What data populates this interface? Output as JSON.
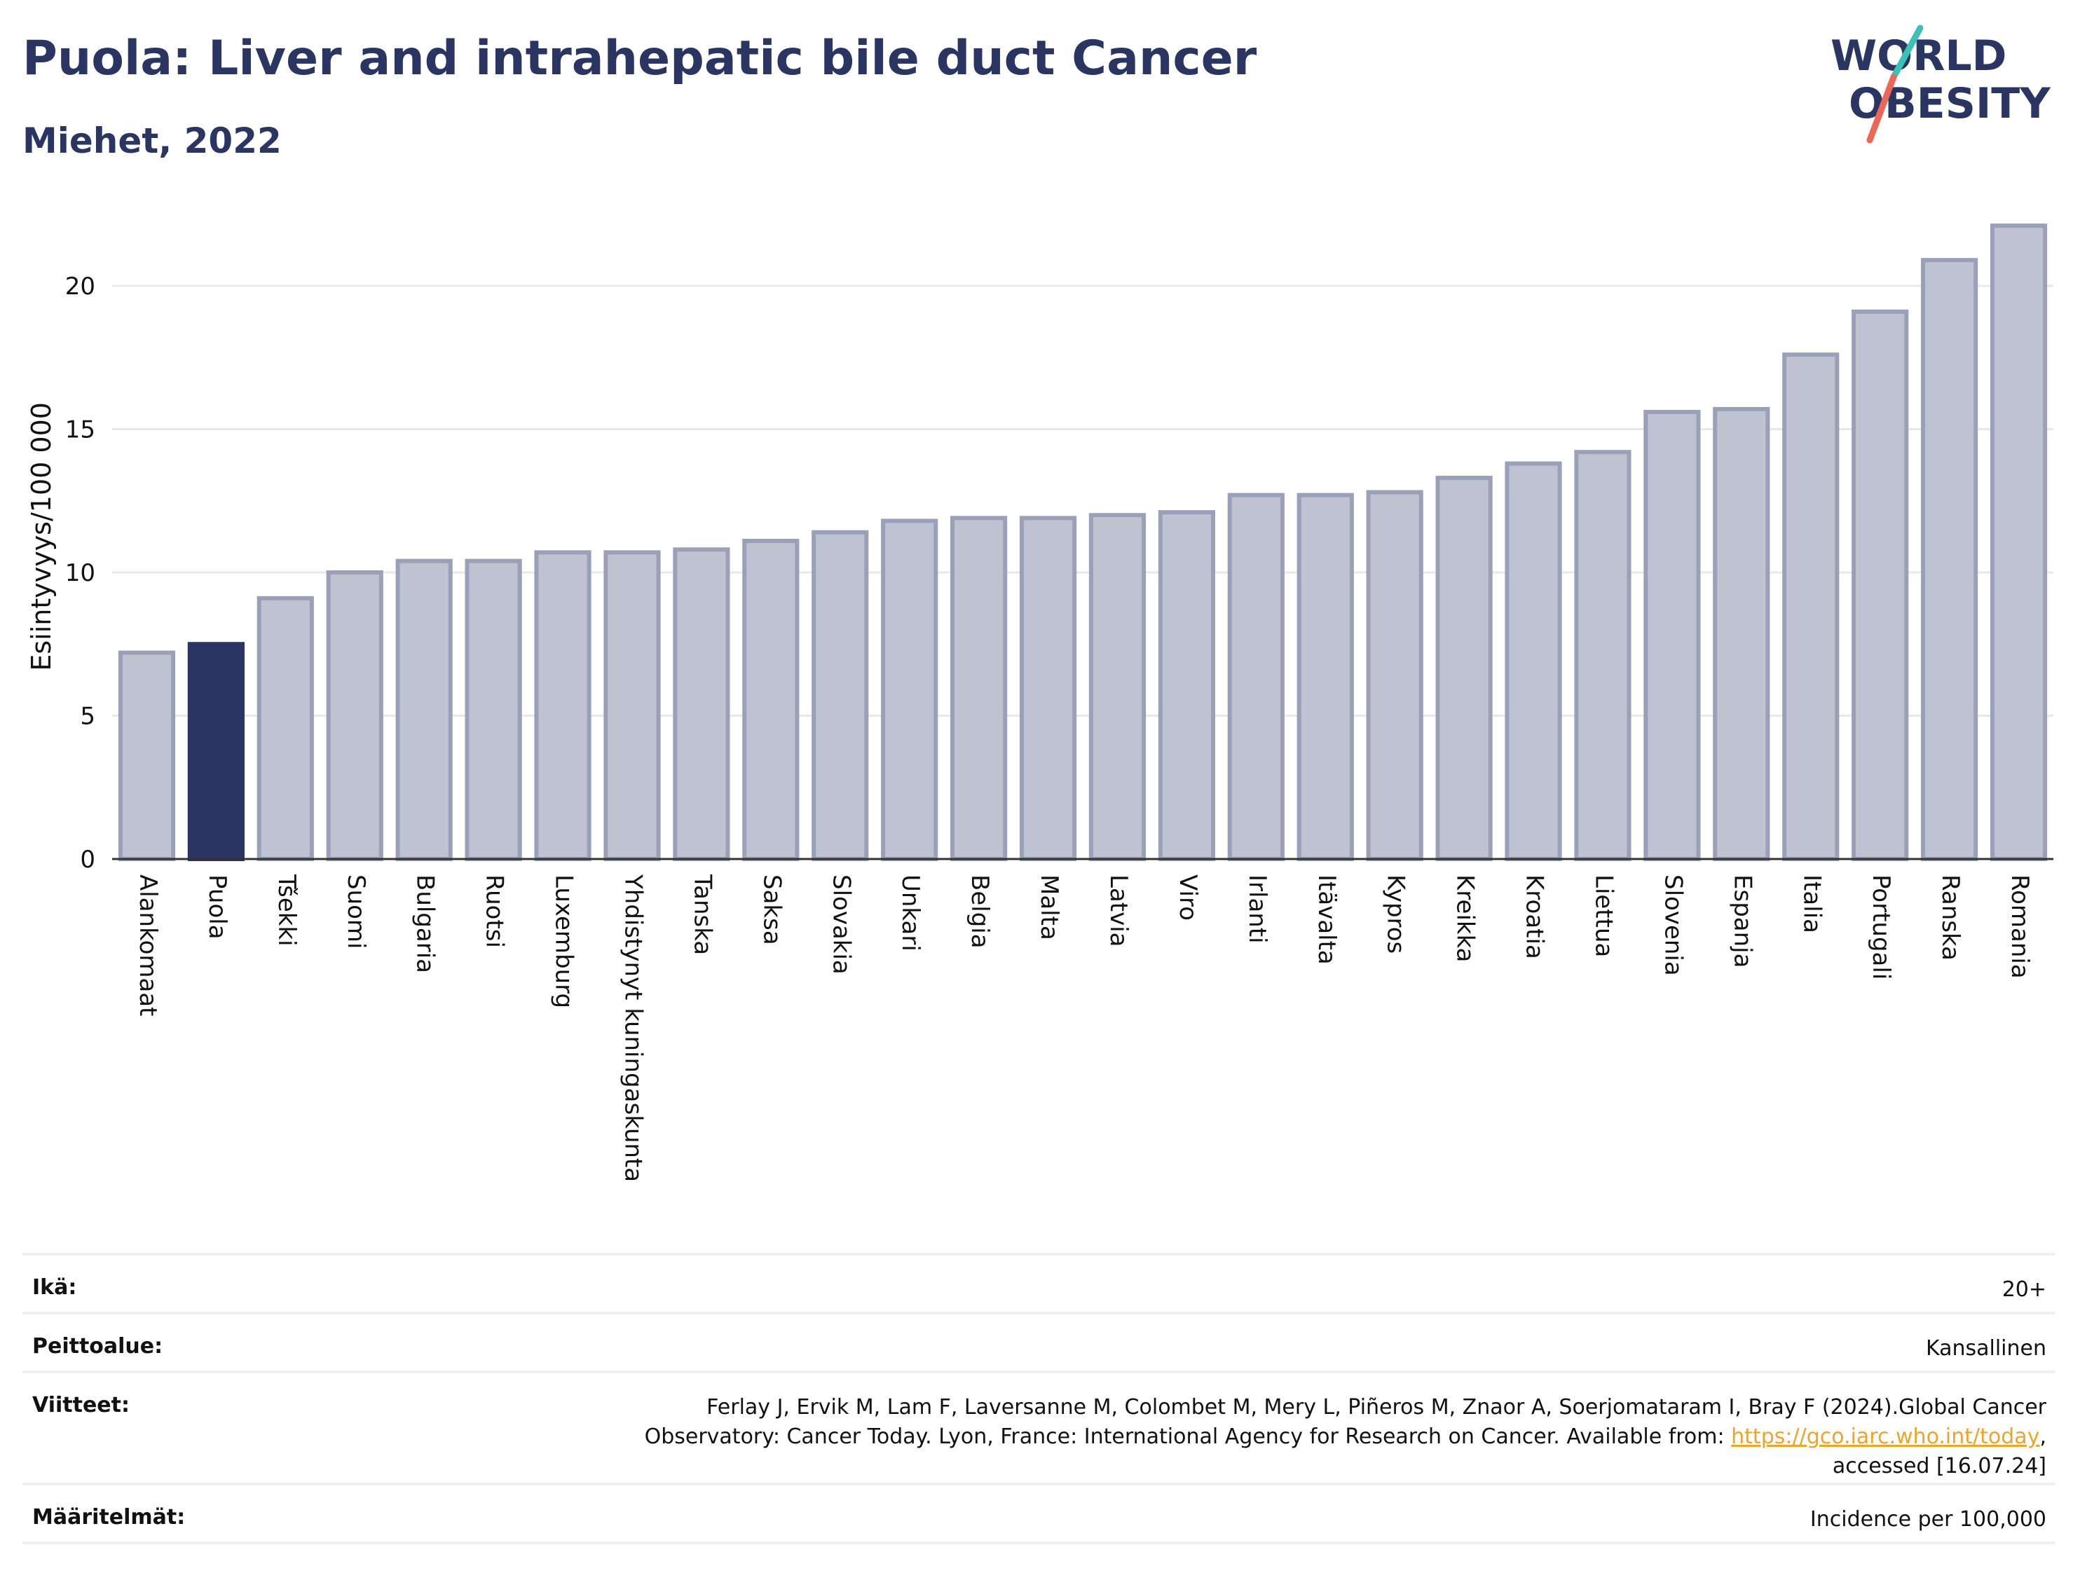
{
  "header": {
    "title": "Puola: Liver and intrahepatic bile duct Cancer",
    "subtitle": "Miehet, 2022"
  },
  "logo": {
    "line1": "WORLD",
    "line2": "OBESITY"
  },
  "colors": {
    "highlight": "#2b3561",
    "bar_fill": "#bfc3d1",
    "bar_stroke": "#9aa0b8",
    "grid": "#e6e8ee",
    "text": "#111111",
    "link": "#e8a52f",
    "logo_teal": "#3fbfb5",
    "logo_coral": "#e8685a"
  },
  "chart_data": {
    "type": "bar",
    "ylabel": "Esiintyvyys/100 000",
    "ylim": [
      0,
      22.5
    ],
    "yticks": [
      0,
      5,
      10,
      15,
      20
    ],
    "highlight": "Puola",
    "categories": [
      "Alankomaat",
      "Puola",
      "Tšekki",
      "Suomi",
      "Bulgaria",
      "Ruotsi",
      "Luxemburg",
      "Yhdistynyt kuningaskunta",
      "Tanska",
      "Saksa",
      "Slovakia",
      "Unkari",
      "Belgia",
      "Malta",
      "Latvia",
      "Viro",
      "Irlanti",
      "Itävalta",
      "Kypros",
      "Kreikka",
      "Kroatia",
      "Liettua",
      "Slovenia",
      "Espanja",
      "Italia",
      "Portugali",
      "Ranska",
      "Romania"
    ],
    "values": [
      7.2,
      7.5,
      9.1,
      10.0,
      10.4,
      10.4,
      10.7,
      10.7,
      10.8,
      11.1,
      11.4,
      11.8,
      11.9,
      11.9,
      12.0,
      12.1,
      12.7,
      12.7,
      12.8,
      13.3,
      13.8,
      14.2,
      15.6,
      15.7,
      17.6,
      19.1,
      20.9,
      22.1
    ],
    "grid": true
  },
  "info": {
    "age_label": "Ikä:",
    "age_value": "20+",
    "coverage_label": "Peittoalue:",
    "coverage_value": "Kansallinen",
    "refs_label": "Viitteet:",
    "refs_line1": "Ferlay J, Ervik M, Lam F, Laversanne M, Colombet M, Mery L, Piñeros M, Znaor A, Soerjomataram I, Bray F (2024).Global Cancer",
    "refs_line2_pre": "Observatory: Cancer Today. Lyon, France: International Agency for Research on Cancer. Available from: ",
    "refs_link": "https://gco.iarc.who.int/today",
    "refs_line2_post": ",",
    "refs_line3": "accessed [16.07.24]",
    "defs_label": "Määritelmät:",
    "defs_value": "Incidence per 100,000"
  }
}
